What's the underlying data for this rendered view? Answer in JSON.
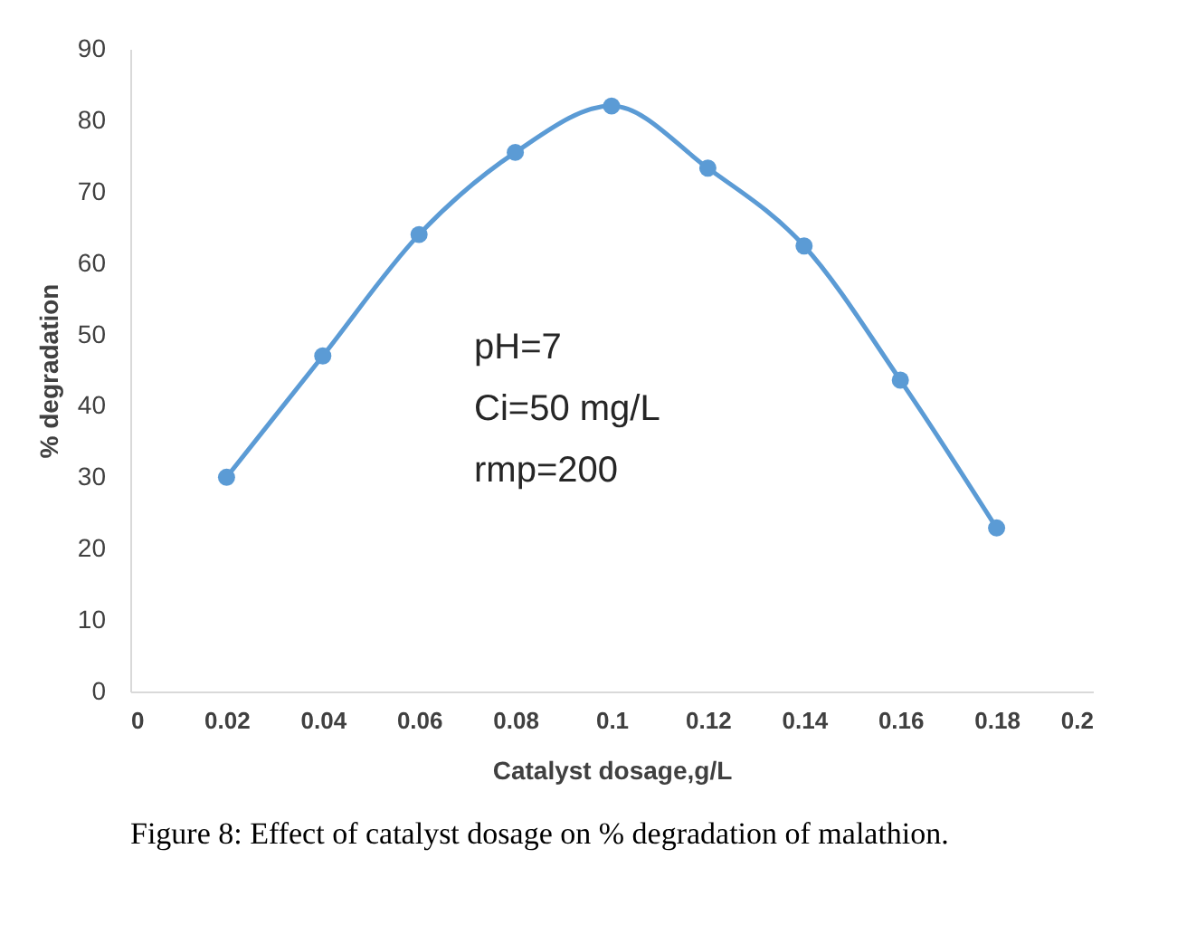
{
  "chart_data": {
    "type": "line",
    "xlabel": "Catalyst dosage,g/L",
    "ylabel": "% degradation",
    "x": [
      0.02,
      0.04,
      0.06,
      0.08,
      0.1,
      0.12,
      0.14,
      0.16,
      0.18
    ],
    "series": [
      {
        "color": "#5b9bd5",
        "values": [
          30,
          47,
          64,
          75.5,
          82,
          73.3,
          62.4,
          43.6,
          22.9
        ]
      }
    ],
    "xlim": [
      0,
      0.2
    ],
    "xticks": [
      0,
      0.02,
      0.04,
      0.06,
      0.08,
      0.1,
      0.12,
      0.14,
      0.16,
      0.18,
      0.2
    ],
    "ylim": [
      0,
      90
    ],
    "yticks": [
      0,
      10,
      20,
      30,
      40,
      50,
      60,
      70,
      80,
      90
    ],
    "marker": "circle",
    "line_style": "solid",
    "grid": false,
    "annotations": [
      "pH=7",
      "Ci=50 mg/L",
      "rmp=200",
      "Figure 8: Effect of catalyst dosage on % degradation of malathion."
    ]
  }
}
